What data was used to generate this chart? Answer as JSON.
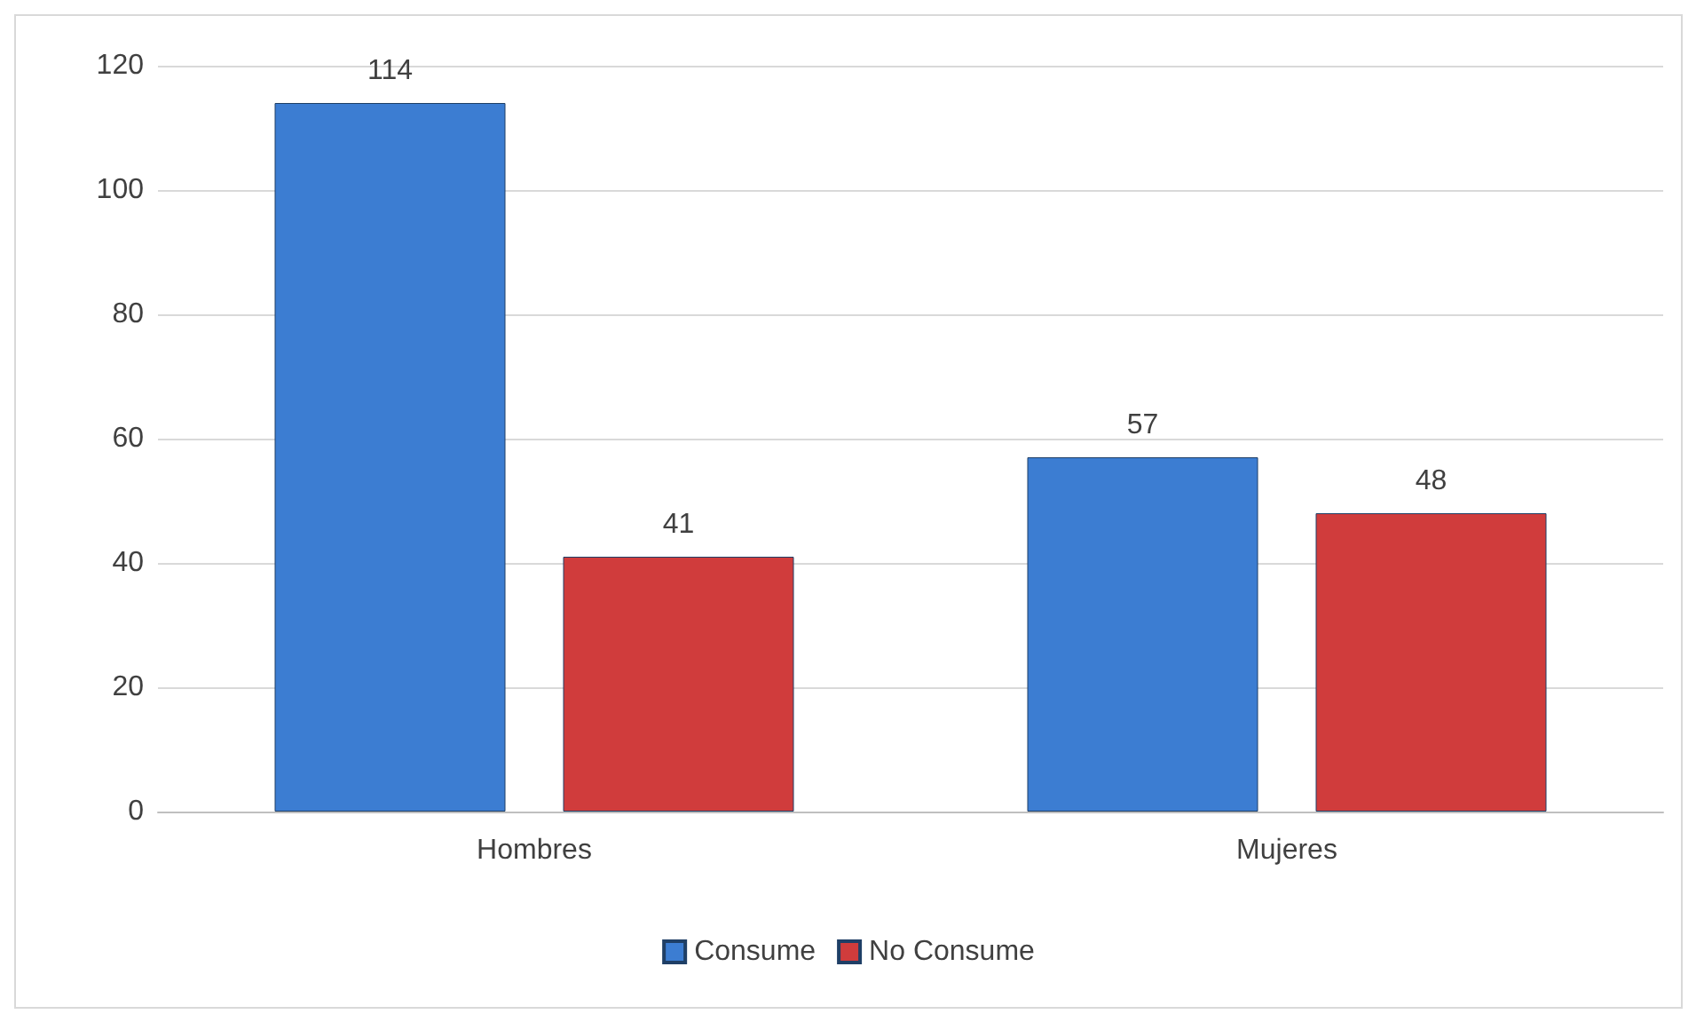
{
  "chart_data": {
    "type": "bar",
    "categories": [
      "Hombres",
      "Mujeres"
    ],
    "series": [
      {
        "name": "Consume",
        "color": "#3c7dd2",
        "values": [
          114,
          57
        ]
      },
      {
        "name": "No Consume",
        "color": "#d03c3c",
        "values": [
          41,
          48
        ]
      }
    ],
    "ylim": [
      0,
      120
    ],
    "yticks": [
      0,
      20,
      40,
      60,
      80,
      100,
      120
    ],
    "grid": "y",
    "legend": "bottom",
    "data_labels": true
  }
}
